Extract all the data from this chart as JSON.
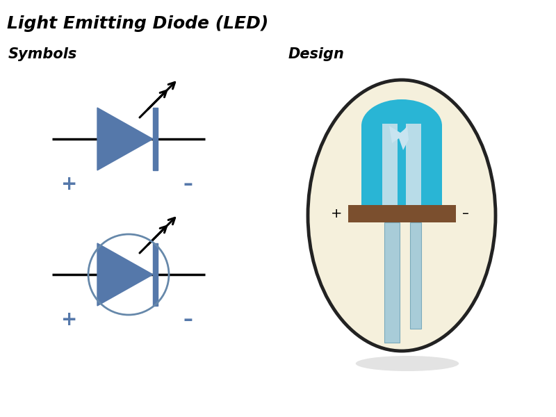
{
  "title": "Light Emitting Diode (LED)",
  "symbols_label": "Symbols",
  "design_label": "Design",
  "led_color": "#5578aa",
  "circle_color": "#6688aa",
  "plus_minus_color": "#5578aa",
  "bg_color": "#ffffff",
  "led_body_color": "#29b5d5",
  "led_shell_color": "#f5f0dc",
  "led_base_color": "#7b4f2e",
  "led_leg_color": "#a8ccd8",
  "led_leg_dark": "#7aaabb",
  "shadow_color": "#cccccc"
}
